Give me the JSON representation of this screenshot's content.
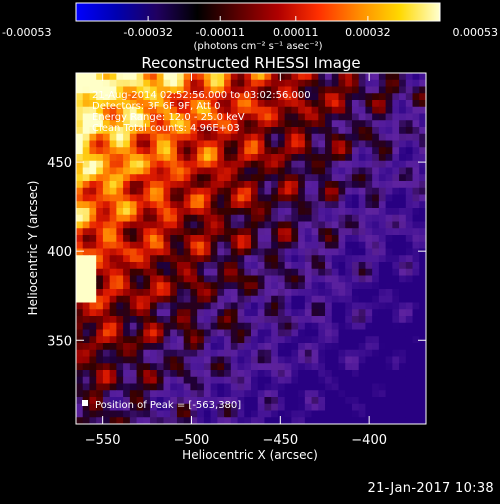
{
  "chart_data": {
    "type": "heatmap",
    "title": "Reconstructed RHESSI Image",
    "xlabel": "Heliocentric X (arcsec)",
    "ylabel": "Heliocentric Y (arcsec)",
    "xlim": [
      -565,
      -368
    ],
    "ylim": [
      303,
      500
    ],
    "x_ticks": [
      -550,
      -500,
      -450,
      -400
    ],
    "y_ticks": [
      350,
      400,
      450
    ],
    "colorbar": {
      "title": "(photons cm⁻² s⁻¹ asec⁻²)",
      "range": [
        -0.00053,
        0.00053
      ],
      "ticks": [
        "-0.00053",
        "-0.00032",
        "-0.00011",
        "0.00011",
        "0.00032",
        "0.00053"
      ],
      "colormap": [
        "#0000ff",
        "#0000b0",
        "#200060",
        "#000000",
        "#5a0000",
        "#b00000",
        "#ff3000",
        "#ff8c00",
        "#ffd800",
        "#ffffd0"
      ]
    },
    "annotations": [
      "21-Aug-2014 02:52:56.000 to 03:02:56.000",
      "Detectors: 3F 6F 9F, Att 0",
      "Energy Range: 12.0 - 25.0 keV",
      "Clean    Total counts: 4.96E+03",
      "Position of Peak = [-563,380]"
    ],
    "peak": {
      "x": -563,
      "y": 380
    }
  },
  "footer": {
    "timestamp": "21-Jan-2017 10:38"
  }
}
